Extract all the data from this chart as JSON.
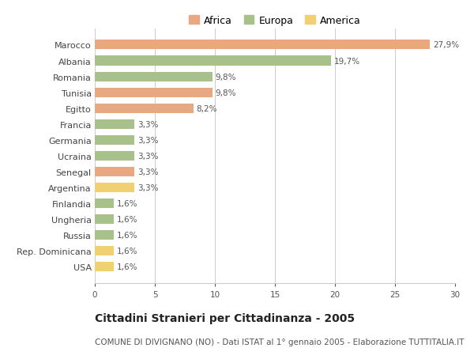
{
  "countries": [
    "Marocco",
    "Albania",
    "Romania",
    "Tunisia",
    "Egitto",
    "Francia",
    "Germania",
    "Ucraina",
    "Senegal",
    "Argentina",
    "Finlandia",
    "Ungheria",
    "Russia",
    "Rep. Dominicana",
    "USA"
  ],
  "values": [
    27.9,
    19.7,
    9.8,
    9.8,
    8.2,
    3.3,
    3.3,
    3.3,
    3.3,
    3.3,
    1.6,
    1.6,
    1.6,
    1.6,
    1.6
  ],
  "labels": [
    "27,9%",
    "19,7%",
    "9,8%",
    "9,8%",
    "8,2%",
    "3,3%",
    "3,3%",
    "3,3%",
    "3,3%",
    "3,3%",
    "1,6%",
    "1,6%",
    "1,6%",
    "1,6%",
    "1,6%"
  ],
  "continents": [
    "Africa",
    "Europa",
    "Europa",
    "Africa",
    "Africa",
    "Europa",
    "Europa",
    "Europa",
    "Africa",
    "America",
    "Europa",
    "Europa",
    "Europa",
    "America",
    "America"
  ],
  "colors": {
    "Africa": "#E8A882",
    "Europa": "#A8C08A",
    "America": "#F0D070"
  },
  "xlim": [
    0,
    30
  ],
  "xticks": [
    0,
    5,
    10,
    15,
    20,
    25,
    30
  ],
  "title": "Cittadini Stranieri per Cittadinanza - 2005",
  "subtitle": "COMUNE DI DIVIGNANO (NO) - Dati ISTAT al 1° gennaio 2005 - Elaborazione TUTTITALIA.IT",
  "background_color": "#ffffff",
  "grid_color": "#cccccc",
  "bar_height": 0.6,
  "label_fontsize": 7.5,
  "title_fontsize": 10,
  "subtitle_fontsize": 7.5,
  "country_fontsize": 8,
  "legend_fontsize": 9
}
